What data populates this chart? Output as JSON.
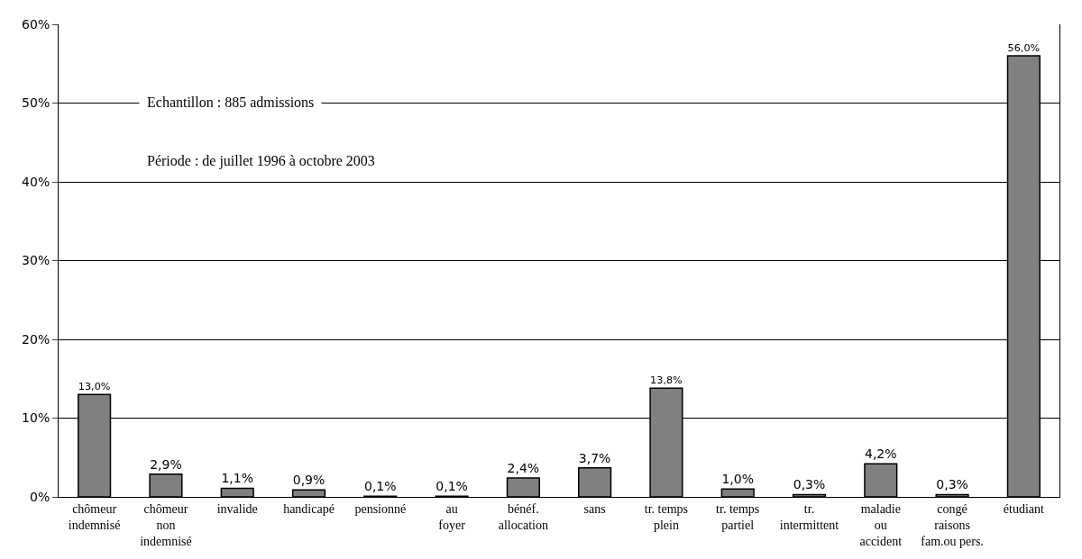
{
  "chart_data": {
    "type": "bar",
    "categories": [
      "chômeur\nindemnisé",
      "chômeur\nnon\nindemnisé",
      "invalide",
      "handicapé",
      "pensionné",
      "au\nfoyer",
      "bénéf.\nallocation",
      "sans",
      "tr. temps\nplein",
      "tr. temps\npartiel",
      "tr.\nintermittent",
      "maladie\nou\naccident",
      "congé\nraisons\nfam.ou pers.",
      "étudiant"
    ],
    "values": [
      13.0,
      2.9,
      1.1,
      0.9,
      0.1,
      0.1,
      2.4,
      3.7,
      13.8,
      1.0,
      0.3,
      4.2,
      0.3,
      56.0
    ],
    "value_labels": [
      "13,0%",
      "2,9%",
      "1,1%",
      "0,9%",
      "0,1%",
      "0,1%",
      "2,4%",
      "3,7%",
      "13,8%",
      "1,0%",
      "0,3%",
      "4,2%",
      "0,3%",
      "56,0%"
    ],
    "color": "#808080",
    "ylim": [
      0,
      60
    ],
    "yticks": [
      {
        "value": 0,
        "label": "0%"
      },
      {
        "value": 10,
        "label": "10%"
      },
      {
        "value": 20,
        "label": "20%"
      },
      {
        "value": 30,
        "label": "30%"
      },
      {
        "value": 40,
        "label": "40%"
      },
      {
        "value": 50,
        "label": "50%"
      },
      {
        "value": 60,
        "label": "60%"
      }
    ],
    "grid": "y",
    "legend": false,
    "annotations": [
      "Echantillon : 885 admissions",
      "Période : de juillet 1996 à octobre 2003"
    ]
  }
}
